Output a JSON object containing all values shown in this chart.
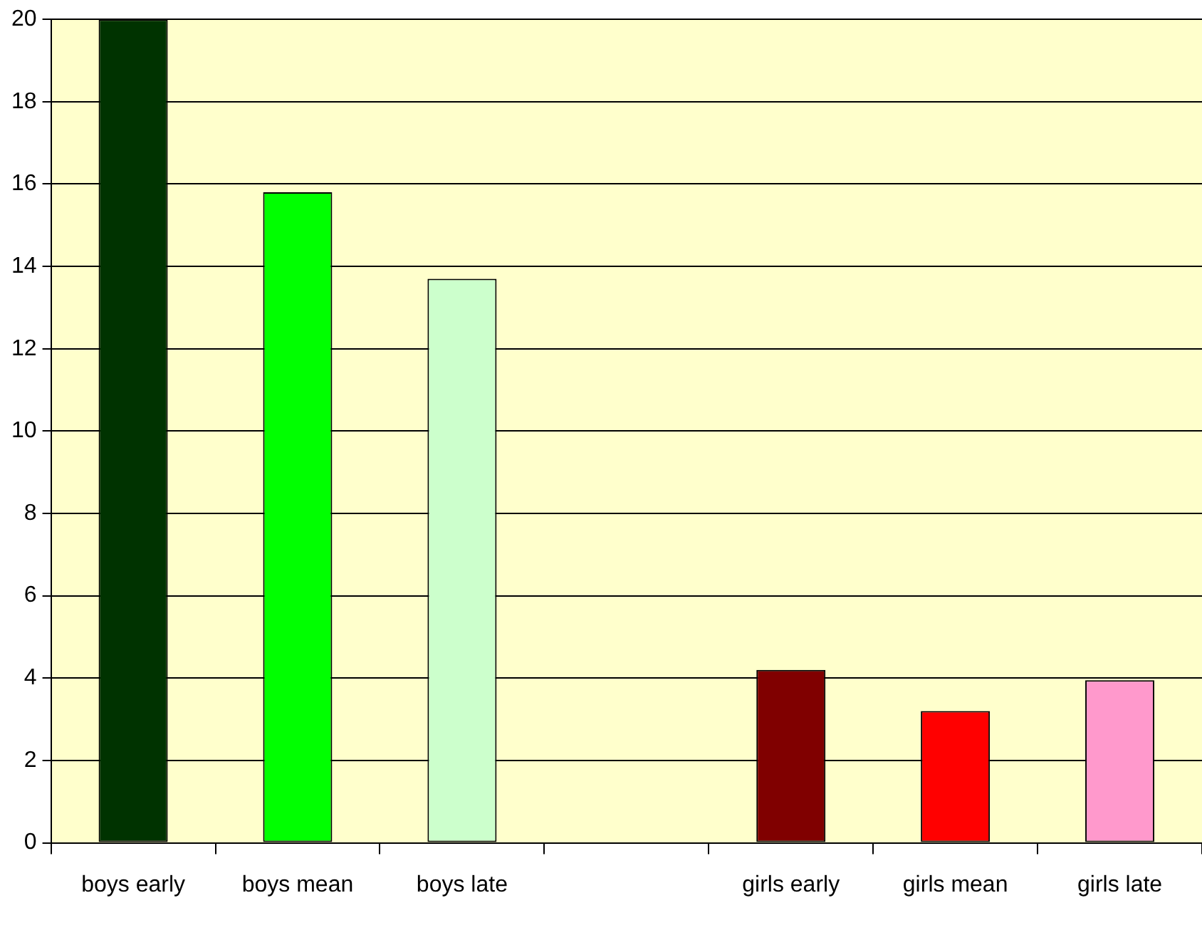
{
  "chart_data": {
    "type": "bar",
    "categories": [
      "boys early",
      "boys mean",
      "boys late",
      null,
      "girls early",
      "girls mean",
      "girls late"
    ],
    "values": [
      20,
      15.8,
      13.7,
      null,
      4.2,
      3.2,
      3.95
    ],
    "colors": [
      "#003300",
      "#00ff00",
      "#ccffcc",
      "#000000",
      "#800000",
      "#ff0000",
      "#ff99cc"
    ],
    "ylim": [
      0,
      20
    ],
    "yticks": [
      0,
      2,
      4,
      6,
      8,
      10,
      12,
      14,
      16,
      18,
      20
    ],
    "grid": "y",
    "legend": false
  }
}
